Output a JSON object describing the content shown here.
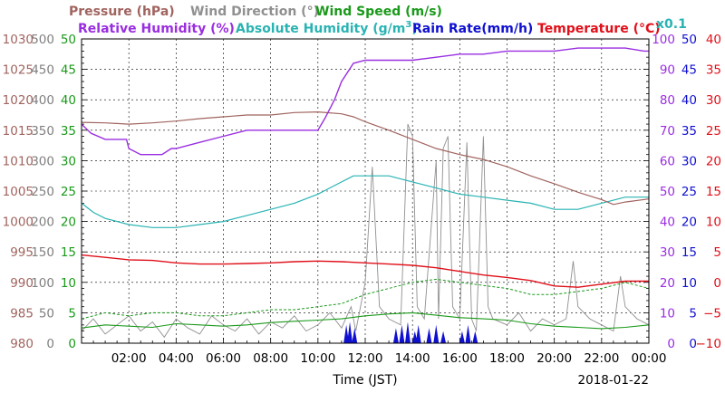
{
  "chart_data": {
    "type": "line",
    "date_label": "2018-01-22",
    "xlabel": "Time (JST)",
    "x_ticks": [
      "02:00",
      "04:00",
      "06:00",
      "08:00",
      "10:00",
      "12:00",
      "14:00",
      "16:00",
      "18:00",
      "20:00",
      "22:00",
      "00:00"
    ],
    "x_range_hours": [
      0,
      24
    ],
    "grid": true,
    "legend": [
      {
        "key": "pressure",
        "label": "Pressure (hPa)",
        "color": "#a0645f"
      },
      {
        "key": "wind_dir",
        "label": "Wind Direction (°)",
        "color": "#909090"
      },
      {
        "key": "wind_speed",
        "label": "Wind Speed (m/s)",
        "color": "#1a9a1a"
      },
      {
        "key": "rh",
        "label": "Relative Humidity (%)",
        "color": "#9a2ee0"
      },
      {
        "key": "ah",
        "label": "Absolute Humidity (g/m",
        "label_sup": "3",
        "label_tail": ")",
        "color": "#2ab3b3"
      },
      {
        "key": "rain",
        "label": "Rain Rate(mm/h)",
        "color": "#1010d0"
      },
      {
        "key": "temp",
        "label": "Temperature (°C)",
        "color": "#e0101a"
      }
    ],
    "ah_scale_note": "x0.1",
    "axes": {
      "pressure": {
        "color": "#a0645f",
        "range": [
          980,
          1030
        ],
        "ticks": [
          "1030",
          "1025",
          "1020",
          "1015",
          "1010",
          "1005",
          "1000",
          "995",
          "990",
          "985",
          "980"
        ]
      },
      "wind_dir": {
        "color": "#808080",
        "range": [
          0,
          500
        ],
        "ticks": [
          "500",
          "450",
          "400",
          "350",
          "300",
          "250",
          "200",
          "150",
          "100",
          "50",
          "0"
        ]
      },
      "wind_speed": {
        "color": "#1a9a1a",
        "range": [
          0,
          50
        ],
        "ticks": [
          "50",
          "45",
          "40",
          "35",
          "30",
          "25",
          "20",
          "15",
          "10",
          "5",
          "0"
        ]
      },
      "rh": {
        "color": "#9a2ee0",
        "range": [
          0,
          100
        ],
        "ticks": [
          "100",
          "90",
          "80",
          "70",
          "60",
          "50",
          "40",
          "30",
          "20",
          "10",
          "0"
        ]
      },
      "rain": {
        "color": "#1010d0",
        "range": [
          0,
          50
        ],
        "ticks": [
          "50",
          "45",
          "40",
          "35",
          "30",
          "25",
          "20",
          "15",
          "10",
          "5",
          "0"
        ]
      },
      "temp": {
        "color": "#e0101a",
        "range": [
          -10,
          40
        ],
        "ticks": [
          "40",
          "35",
          "30",
          "25",
          "20",
          "15",
          "10",
          "5",
          "0",
          "−5",
          "−10"
        ]
      }
    },
    "series": {
      "pressure": {
        "x": [
          0,
          1,
          2,
          3,
          4,
          5,
          6,
          7,
          8,
          9,
          10,
          11,
          11.5,
          12,
          13,
          14,
          15,
          16,
          17,
          18,
          19,
          20,
          21,
          22,
          22.5,
          23,
          24
        ],
        "y": [
          1016.3,
          1016.2,
          1016.0,
          1016.2,
          1016.5,
          1016.9,
          1017.2,
          1017.5,
          1017.5,
          1017.9,
          1018.0,
          1017.7,
          1017.2,
          1016.4,
          1015.0,
          1013.5,
          1012.0,
          1011.0,
          1010.2,
          1009.0,
          1007.5,
          1006.2,
          1004.8,
          1003.6,
          1002.8,
          1003.2,
          1003.7
        ]
      },
      "rh": {
        "x": [
          0,
          0.4,
          1,
          1.9,
          2,
          2.5,
          3,
          3.4,
          3.8,
          4,
          5,
          6,
          7,
          8,
          9,
          10,
          10.3,
          10.7,
          11,
          11.5,
          12,
          13,
          14,
          15,
          16,
          16.5,
          17,
          18,
          19,
          20,
          21,
          22,
          23,
          23.8,
          24
        ],
        "y": [
          72,
          69,
          67,
          67,
          64,
          62,
          62,
          62,
          64,
          64,
          66,
          68,
          70,
          70,
          70,
          70,
          74,
          80,
          86,
          92,
          93,
          93,
          93,
          94,
          95,
          95,
          95,
          96,
          96,
          96,
          97,
          97,
          97,
          96,
          96
        ]
      },
      "ah": {
        "x": [
          0,
          0.5,
          1,
          2,
          3,
          4,
          5,
          6,
          7,
          8,
          9,
          10,
          10.5,
          11,
          11.5,
          12,
          13,
          14,
          15,
          16,
          17,
          18,
          19,
          20,
          21,
          22,
          23,
          24
        ],
        "y": [
          4.6,
          4.3,
          4.1,
          3.9,
          3.8,
          3.8,
          3.9,
          4.0,
          4.2,
          4.4,
          4.6,
          4.9,
          5.1,
          5.3,
          5.5,
          5.5,
          5.5,
          5.3,
          5.1,
          4.9,
          4.8,
          4.7,
          4.6,
          4.4,
          4.4,
          4.6,
          4.8,
          4.8
        ]
      },
      "temp": {
        "x": [
          0,
          1,
          2,
          3,
          4,
          5,
          6,
          7,
          8,
          9,
          10,
          11,
          12,
          13,
          14,
          15,
          16,
          17,
          18,
          19,
          20,
          21,
          22,
          23,
          24
        ],
        "y": [
          4.5,
          4.1,
          3.7,
          3.6,
          3.2,
          3.0,
          3.0,
          3.1,
          3.2,
          3.4,
          3.5,
          3.4,
          3.2,
          3.0,
          2.8,
          2.4,
          1.8,
          1.2,
          0.8,
          0.3,
          -0.6,
          -0.8,
          -0.3,
          0.2,
          0.2
        ]
      },
      "wind_dir": {
        "x": [
          0,
          0.5,
          1,
          1.5,
          2,
          2.5,
          3,
          3.5,
          4,
          4.5,
          5,
          5.5,
          6,
          6.5,
          7,
          7.5,
          8,
          8.5,
          9,
          9.5,
          10,
          10.5,
          11,
          11.4,
          11.6,
          12,
          12.3,
          12.6,
          13,
          13.5,
          13.8,
          14,
          14.2,
          14.5,
          15,
          15.1,
          15.3,
          15.5,
          15.7,
          16,
          16.3,
          16.5,
          16.7,
          17,
          17.2,
          17.4,
          18,
          18.5,
          19,
          19.5,
          20,
          20.5,
          20.8,
          21,
          21.5,
          22,
          22.5,
          22.8,
          23,
          23.5,
          24
        ],
        "y": [
          20,
          40,
          15,
          30,
          45,
          20,
          35,
          10,
          40,
          25,
          15,
          45,
          30,
          20,
          40,
          15,
          35,
          25,
          45,
          20,
          30,
          50,
          25,
          60,
          20,
          100,
          290,
          60,
          40,
          30,
          360,
          340,
          60,
          40,
          300,
          40,
          320,
          340,
          60,
          40,
          330,
          40,
          20,
          340,
          60,
          40,
          30,
          50,
          20,
          40,
          30,
          40,
          135,
          60,
          40,
          30,
          20,
          110,
          60,
          40,
          30
        ]
      },
      "wind_speed": {
        "x": [
          0,
          1,
          2,
          3,
          4,
          5,
          6,
          7,
          8,
          9,
          10,
          11,
          12,
          13,
          14,
          15,
          16,
          17,
          18,
          19,
          20,
          21,
          22,
          23,
          24
        ],
        "y": [
          2.5,
          3.0,
          2.8,
          2.6,
          3.2,
          3.0,
          2.8,
          3.0,
          3.4,
          3.6,
          3.8,
          4.0,
          4.5,
          4.8,
          5.0,
          4.6,
          4.2,
          4.0,
          3.8,
          3.2,
          2.8,
          2.6,
          2.4,
          2.6,
          3.0
        ]
      },
      "wind_gust": {
        "x": [
          0,
          1,
          2,
          3,
          4,
          5,
          6,
          7,
          8,
          9,
          10,
          11,
          12,
          13,
          14,
          15,
          16,
          17,
          18,
          19,
          20,
          21,
          22,
          23,
          24
        ],
        "y": [
          4,
          5,
          4.5,
          5,
          5,
          4.5,
          4.5,
          5,
          5.5,
          5.5,
          6,
          6.5,
          8,
          9,
          10,
          10.5,
          10,
          9.5,
          9,
          8,
          8,
          8.5,
          9,
          10,
          9
        ]
      },
      "rain": {
        "x": [
          11.2,
          11.35,
          11.55,
          13.3,
          13.55,
          13.8,
          14.1,
          14.25,
          14.7,
          15.0,
          15.3,
          16.1,
          16.35,
          16.65
        ],
        "y": [
          3,
          3.5,
          2.5,
          2.5,
          3,
          3.5,
          2,
          3,
          2.5,
          3,
          2,
          2,
          3,
          2
        ]
      }
    }
  }
}
